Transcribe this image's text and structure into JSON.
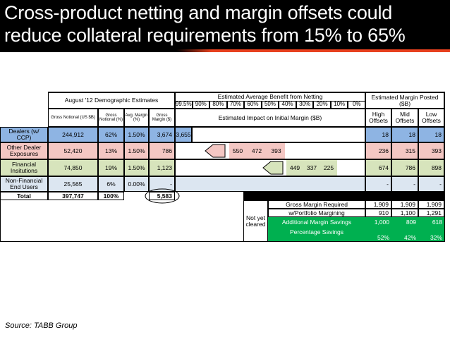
{
  "title": {
    "line1": "Cross-product netting and margin offsets could",
    "line2": "reduce collateral requirements from 15% to 65%"
  },
  "colors": {
    "accent": "#e8411e",
    "dealer_row": "#8eb4e3",
    "green": "#00b050"
  },
  "header": {
    "demographic": "August '12 Demographic Estimates",
    "gross_notional": "Gross Notional (US $B)",
    "gross_notional_pct": "Gross Notional (%)",
    "avg_margin": "Avg. Margin (%)",
    "gross_margin": "Gross Margin ($)",
    "benefit_title": "Estimated Average Benefit from Netting",
    "benefit_levels": [
      "99.5%",
      "90%",
      "80%",
      "70%",
      "60%",
      "50%",
      "40%",
      "30%",
      "20%",
      "10%",
      "0%"
    ],
    "impact": "Estimated Impact on Initial Margin ($B)",
    "posted": "Estimated Margin Posted ($B)",
    "high": "High Offsets",
    "mid": "Mid Offsets",
    "low": "Low Offsets"
  },
  "rows": [
    {
      "label": "Dealers (w/ CCP)",
      "notional": "244,912",
      "pct": "62%",
      "margin": "1.50%",
      "gross": "3,674",
      "impact": [
        "3,655"
      ],
      "high": "18",
      "mid": "18",
      "low": "18"
    },
    {
      "label": "Other Dealer Exposures",
      "notional": "52,420",
      "pct": "13%",
      "margin": "1.50%",
      "gross": "786",
      "impact": [
        "550",
        "472",
        "393"
      ],
      "high": "236",
      "mid": "315",
      "low": "393"
    },
    {
      "label": "Financial Insitutions",
      "notional": "74,850",
      "pct": "19%",
      "margin": "1.50%",
      "gross": "1,123",
      "impact": [
        "449",
        "337",
        "225"
      ],
      "high": "674",
      "mid": "786",
      "low": "898"
    },
    {
      "label": "Non-Financial End Users",
      "notional": "25,565",
      "pct": "6%",
      "margin": "0.00%",
      "gross": "-",
      "high": "-",
      "mid": "-",
      "low": "-"
    }
  ],
  "total": {
    "label": "Total",
    "notional": "397,747",
    "pct": "100%",
    "gross": "5,583"
  },
  "summary": {
    "not_cleared": "Not yet cleared",
    "gross_req": "Gross Margin Required",
    "gross_req_vals": [
      "1,909",
      "1,909",
      "1,909"
    ],
    "portfolio": "w/Portfolio Margining",
    "portfolio_vals": [
      "910",
      "1,100",
      "1,291"
    ],
    "savings": "Additional Margin Savings",
    "savings_vals": [
      "1,000",
      "809",
      "618"
    ],
    "pct_savings": "Percentage Savings",
    "pct_vals": [
      "52%",
      "42%",
      "32%"
    ]
  },
  "source": "Source: TABB Group"
}
